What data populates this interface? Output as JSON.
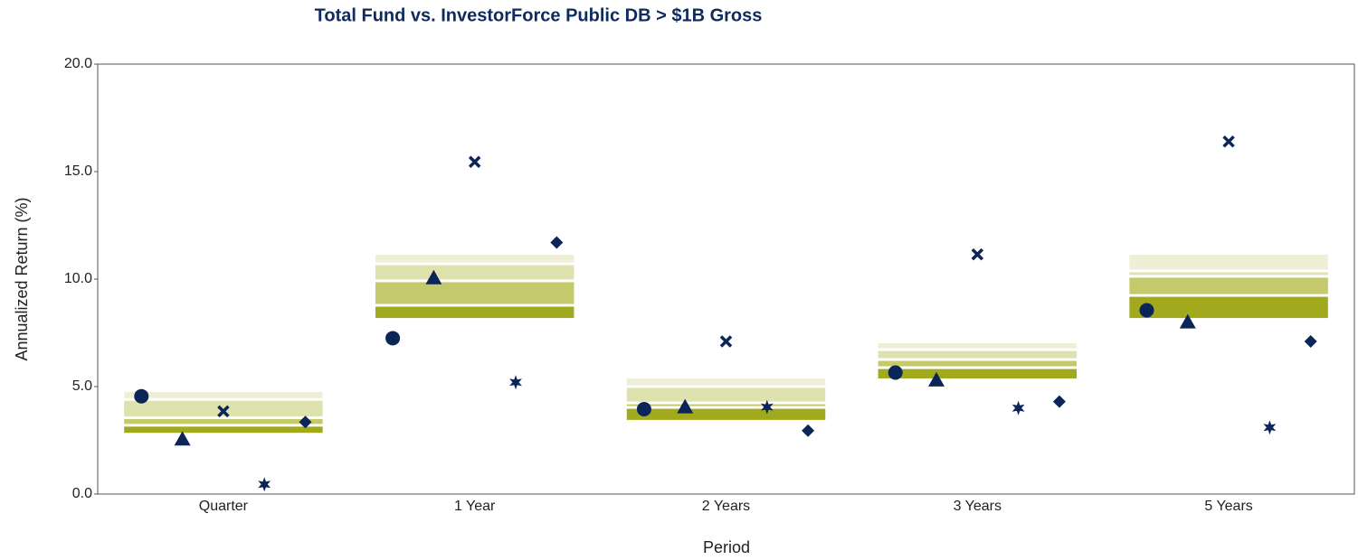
{
  "chart_data": {
    "type": "floating-percentile",
    "title": "Total Fund vs. InvestorForce Public DB > $1B Gross",
    "x_label": "Period",
    "y_label": "Annualized Return (%)",
    "categories": [
      "Quarter",
      "1 Year",
      "2 Years",
      "3 Years",
      "5 Years"
    ],
    "percentiles": [
      [
        4.75,
        4.4,
        3.55,
        3.2,
        2.85
      ],
      [
        11.13,
        10.71,
        9.92,
        8.78,
        8.19
      ],
      [
        5.38,
        5.0,
        4.24,
        4.03,
        3.45
      ],
      [
        7.02,
        6.72,
        6.26,
        5.88,
        5.38
      ],
      [
        11.13,
        10.38,
        10.13,
        9.24,
        8.19
      ]
    ],
    "band_colors": [
      "#eeefd6",
      "#dee2ae",
      "#c4ca6b",
      "#a1a91c"
    ],
    "series": [
      {
        "marker": "circle",
        "color": "#0b2559",
        "values": [
          4.55,
          7.25,
          3.95,
          5.65,
          8.55
        ]
      },
      {
        "marker": "triangle",
        "color": "#0b2559",
        "values": [
          2.55,
          10.05,
          4.05,
          5.3,
          8.0
        ]
      },
      {
        "marker": "x",
        "color": "#0b2559",
        "values": [
          3.85,
          15.45,
          7.1,
          11.15,
          16.4
        ]
      },
      {
        "marker": "star",
        "color": "#0b2559",
        "values": [
          0.45,
          5.2,
          4.05,
          4.0,
          3.1
        ]
      },
      {
        "marker": "diamond",
        "color": "#0b2559",
        "values": [
          3.35,
          11.7,
          2.95,
          4.3,
          7.1
        ]
      }
    ],
    "ylim": [
      0,
      20
    ],
    "yticks": [
      {
        "value": 0,
        "label": "0.0"
      },
      {
        "value": 5,
        "label": "5.0"
      },
      {
        "value": 10,
        "label": "10.0"
      },
      {
        "value": 15,
        "label": "15.0"
      },
      {
        "value": 20,
        "label": "20.0"
      }
    ],
    "grid": false
  }
}
